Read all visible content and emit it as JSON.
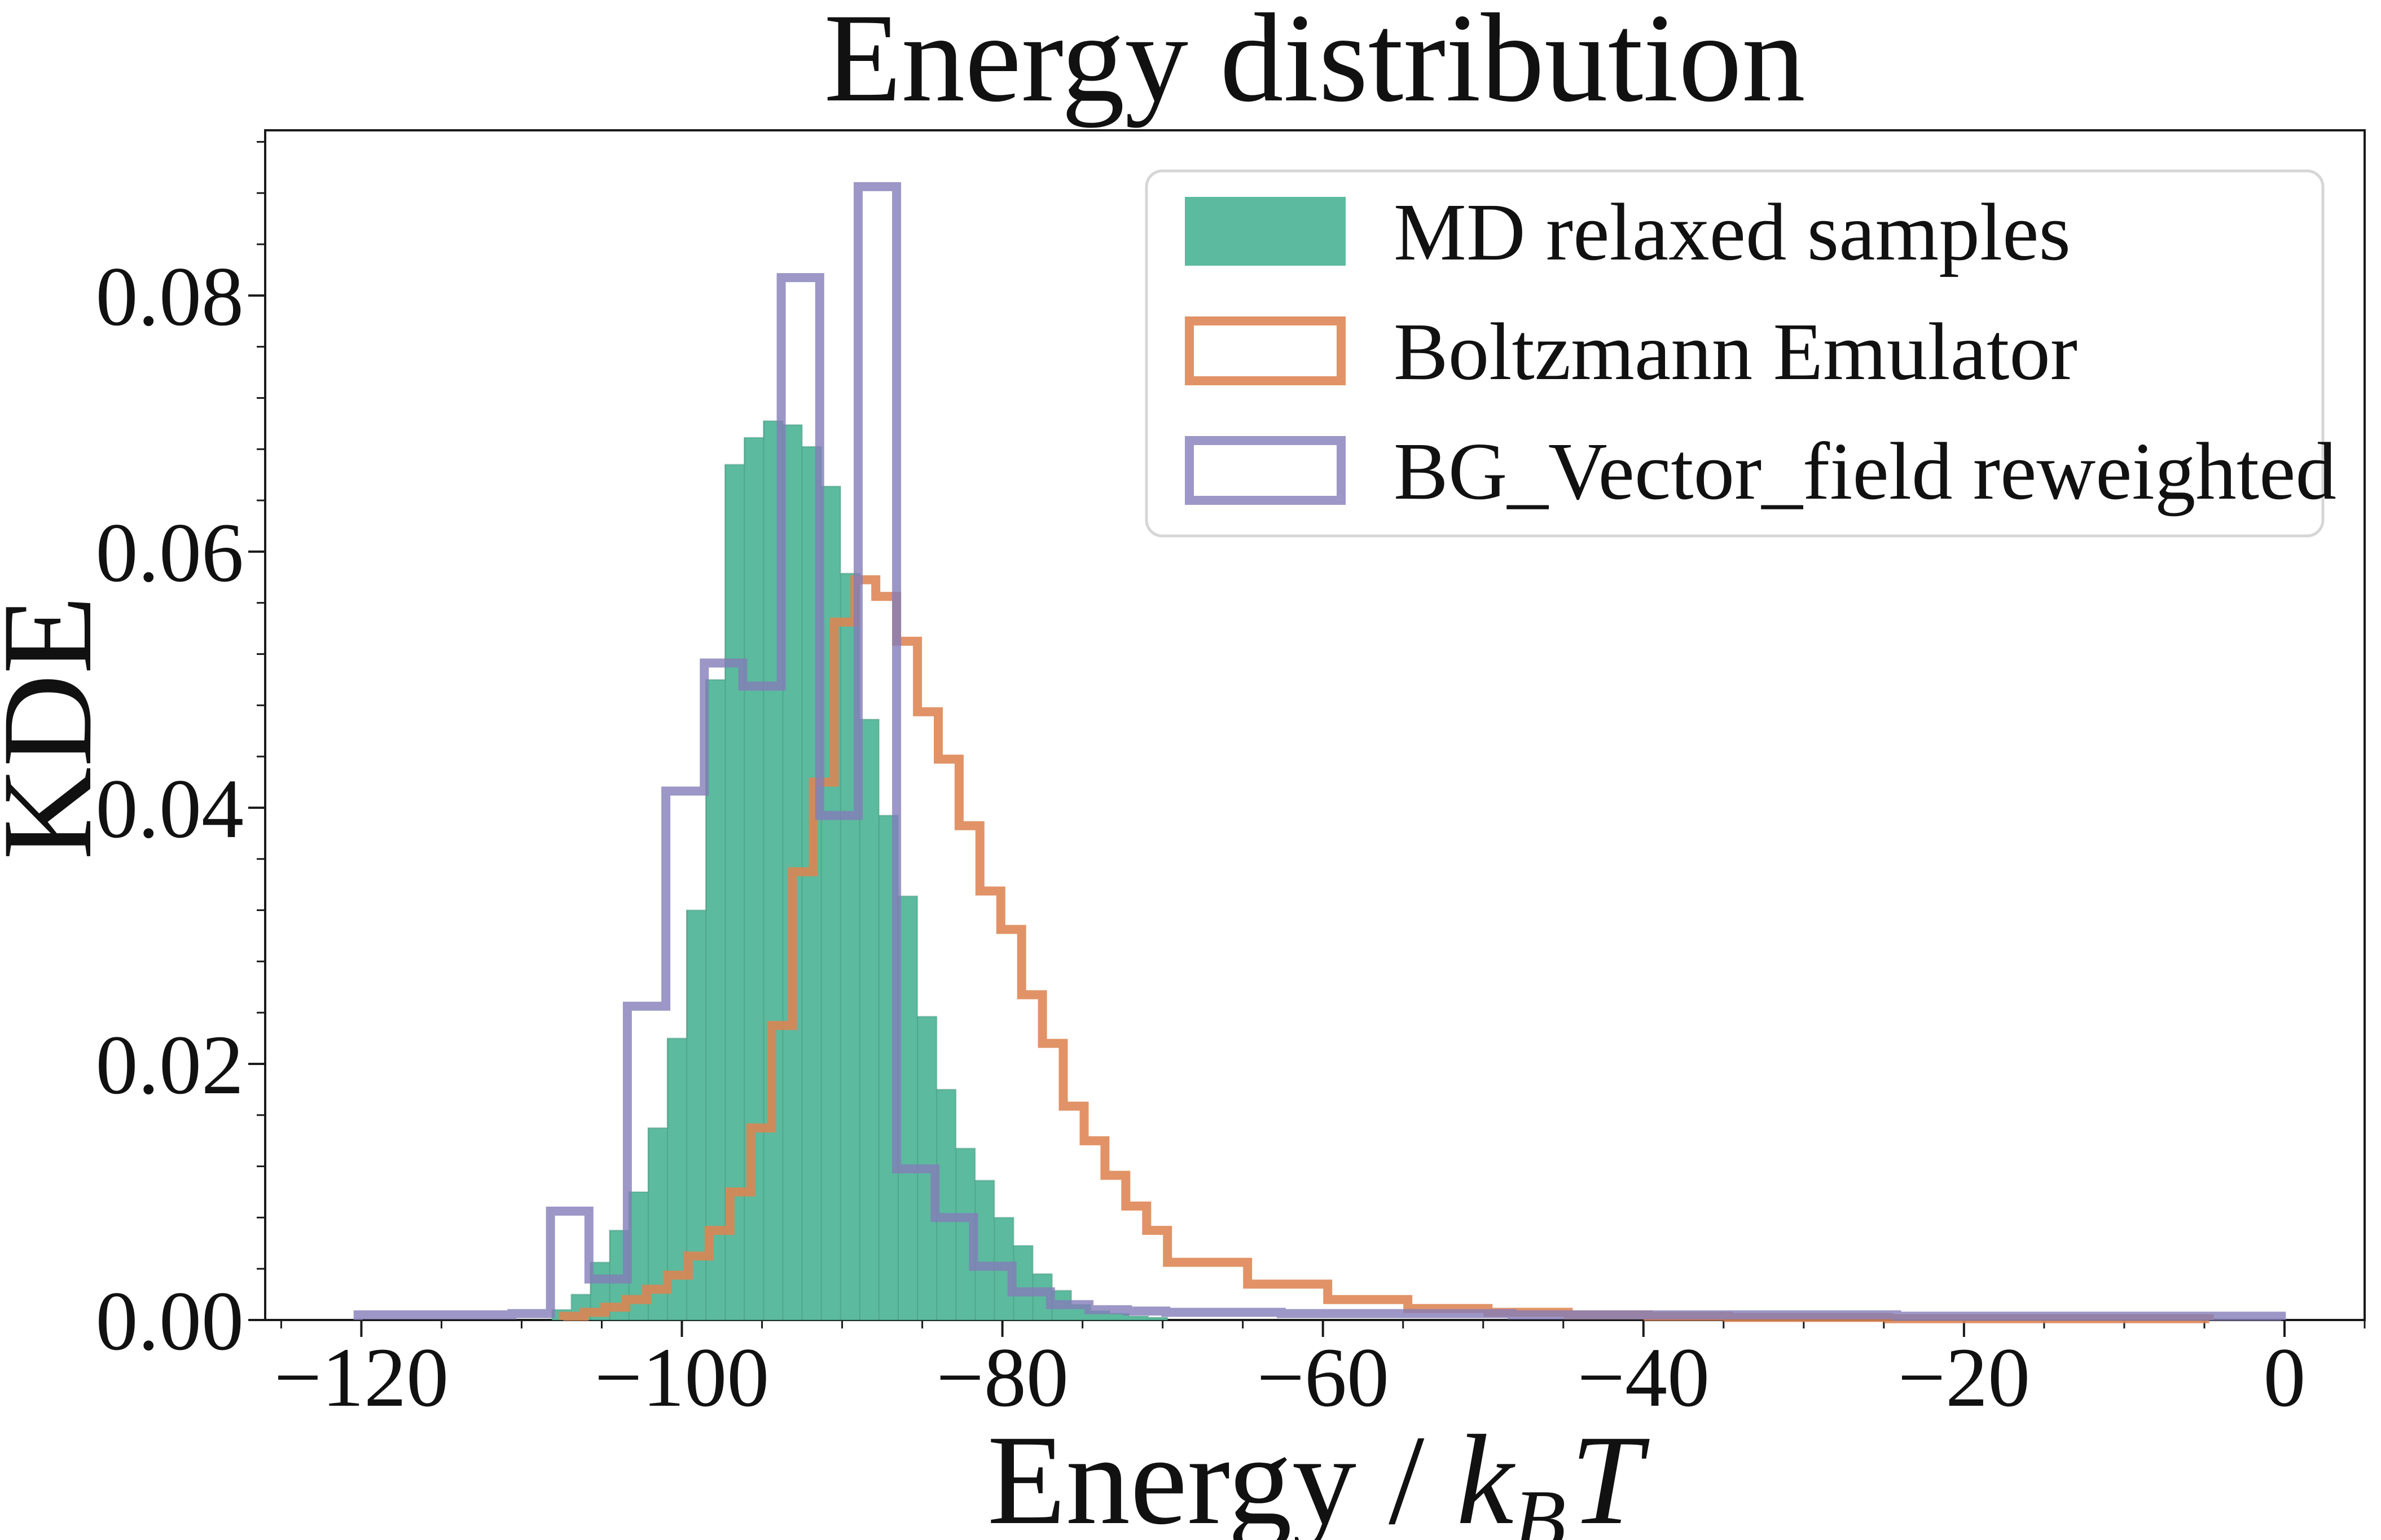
{
  "chart_data": {
    "type": "bar",
    "subtype": "overlaid-histograms",
    "title": "Energy distribution",
    "xlabel": "Energy / k_B T",
    "xlabel_parts": [
      "Energy / ",
      "k",
      "B",
      "T"
    ],
    "ylabel": "KDE",
    "xlim": [
      -126.0,
      5.0
    ],
    "ylim": [
      0,
      0.0929
    ],
    "grid": "off",
    "legend_position": "upper right",
    "x_ticks": {
      "major": [
        -120,
        -100,
        -80,
        -60,
        -40,
        -20,
        0
      ],
      "labels": [
        "−120",
        "−100",
        "−80",
        "−60",
        "−40",
        "−20",
        "0"
      ],
      "minor": [
        -125,
        -115,
        -110,
        -105,
        -95,
        -90,
        -85,
        -75,
        -70,
        -65,
        -55,
        -50,
        -45,
        -35,
        -30,
        -25,
        -15,
        -10,
        -5,
        5
      ]
    },
    "y_ticks": {
      "major": [
        0,
        0.02,
        0.04,
        0.06,
        0.08
      ],
      "labels": [
        "0.00",
        "0.02",
        "0.04",
        "0.06",
        "0.08"
      ],
      "minor": [
        0.004,
        0.008,
        0.012,
        0.016,
        0.024,
        0.028,
        0.032,
        0.036,
        0.044,
        0.048,
        0.052,
        0.056,
        0.064,
        0.068,
        0.072,
        0.076,
        0.084,
        0.088,
        0.092
      ]
    },
    "series": [
      {
        "name": "MD relaxed samples",
        "style": "filled",
        "fill_color": "#5CBA9E",
        "edge_color": "rgba(45,125,99,0.30)",
        "segments": [
          {
            "bin_start": -108.1,
            "bin_width": 1.2,
            "heights": [
              0.0008,
              0.002,
              0.0045,
              0.007,
              0.01,
              0.015,
              0.022,
              0.032,
              0.05,
              0.0668,
              0.0689,
              0.0702,
              0.0699,
              0.0682,
              0.0651,
              0.0583,
              0.0469,
              0.0394,
              0.0331,
              0.0237,
              0.018,
              0.0134,
              0.0109,
              0.008,
              0.0058,
              0.0036,
              0.0023,
              0.0012,
              0.0007,
              0.0005,
              0.0003,
              0.0002
            ]
          }
        ]
      },
      {
        "name": "Boltzmann Emulator",
        "style": "step",
        "line_color": "rgba(221,132,82,0.88)",
        "legend_color": "#DD8452",
        "segments": [
          {
            "bin_start": -107.4,
            "bin_width": 1.3,
            "heights": [
              0.0003,
              0.0006,
              0.001,
              0.0016,
              0.0024,
              0.0035,
              0.005,
              0.007,
              0.01,
              0.015,
              0.023,
              0.035,
              0.042,
              0.0545,
              0.0578,
              0.0565,
              0.053,
              0.0475,
              0.0438,
              0.0386,
              0.0335,
              0.0305,
              0.0254,
              0.0216,
              0.0167,
              0.014,
              0.0113,
              0.0089,
              0.007
            ]
          },
          {
            "bin_start": -69.7,
            "bin_width": 5.0,
            "heights": [
              0.0045,
              0.0028,
              0.0016,
              0.0009,
              0.0006,
              0.0004,
              0.0003,
              0.0002,
              0.0002,
              0.0001,
              0.0001,
              0.0001,
              0.0001
            ]
          }
        ]
      },
      {
        "name": "BG_Vector_field reweighted",
        "style": "step",
        "line_color": "rgba(131,125,184,0.80)",
        "legend_color": "#9A94C8",
        "segments": [
          {
            "bin_start": -120.2,
            "bin_width": 2.4,
            "heights": [
              0.0004,
              0.0004,
              0.0004,
              0.0004,
              0.0005,
              0.0085,
              0.0032,
              0.0245,
              0.0413,
              0.0513,
              0.0495,
              0.0814,
              0.0394,
              0.0885,
              0.0118,
              0.008,
              0.0042,
              0.0022,
              0.0012,
              0.0008,
              0.0007,
              0.0006,
              0.0006,
              0.0006,
              0.0005,
              0.0005,
              0.0005,
              0.0005,
              0.0005,
              0.0005,
              0.0004,
              0.0004,
              0.0004,
              0.0004,
              0.0004,
              0.0004,
              0.0004,
              0.0004,
              0.0004,
              0.0004,
              0.0003,
              0.0003,
              0.0003,
              0.0003,
              0.0003,
              0.0003,
              0.0003,
              0.0003,
              0.0003,
              0.0003
            ]
          }
        ]
      }
    ],
    "annotations": []
  },
  "colors": {
    "background": "#FFFFFF",
    "spine": "#1A1A1A",
    "text": "#111111",
    "legend_border": "#D6D6D6",
    "legend_fill": "#FFFFFF"
  }
}
